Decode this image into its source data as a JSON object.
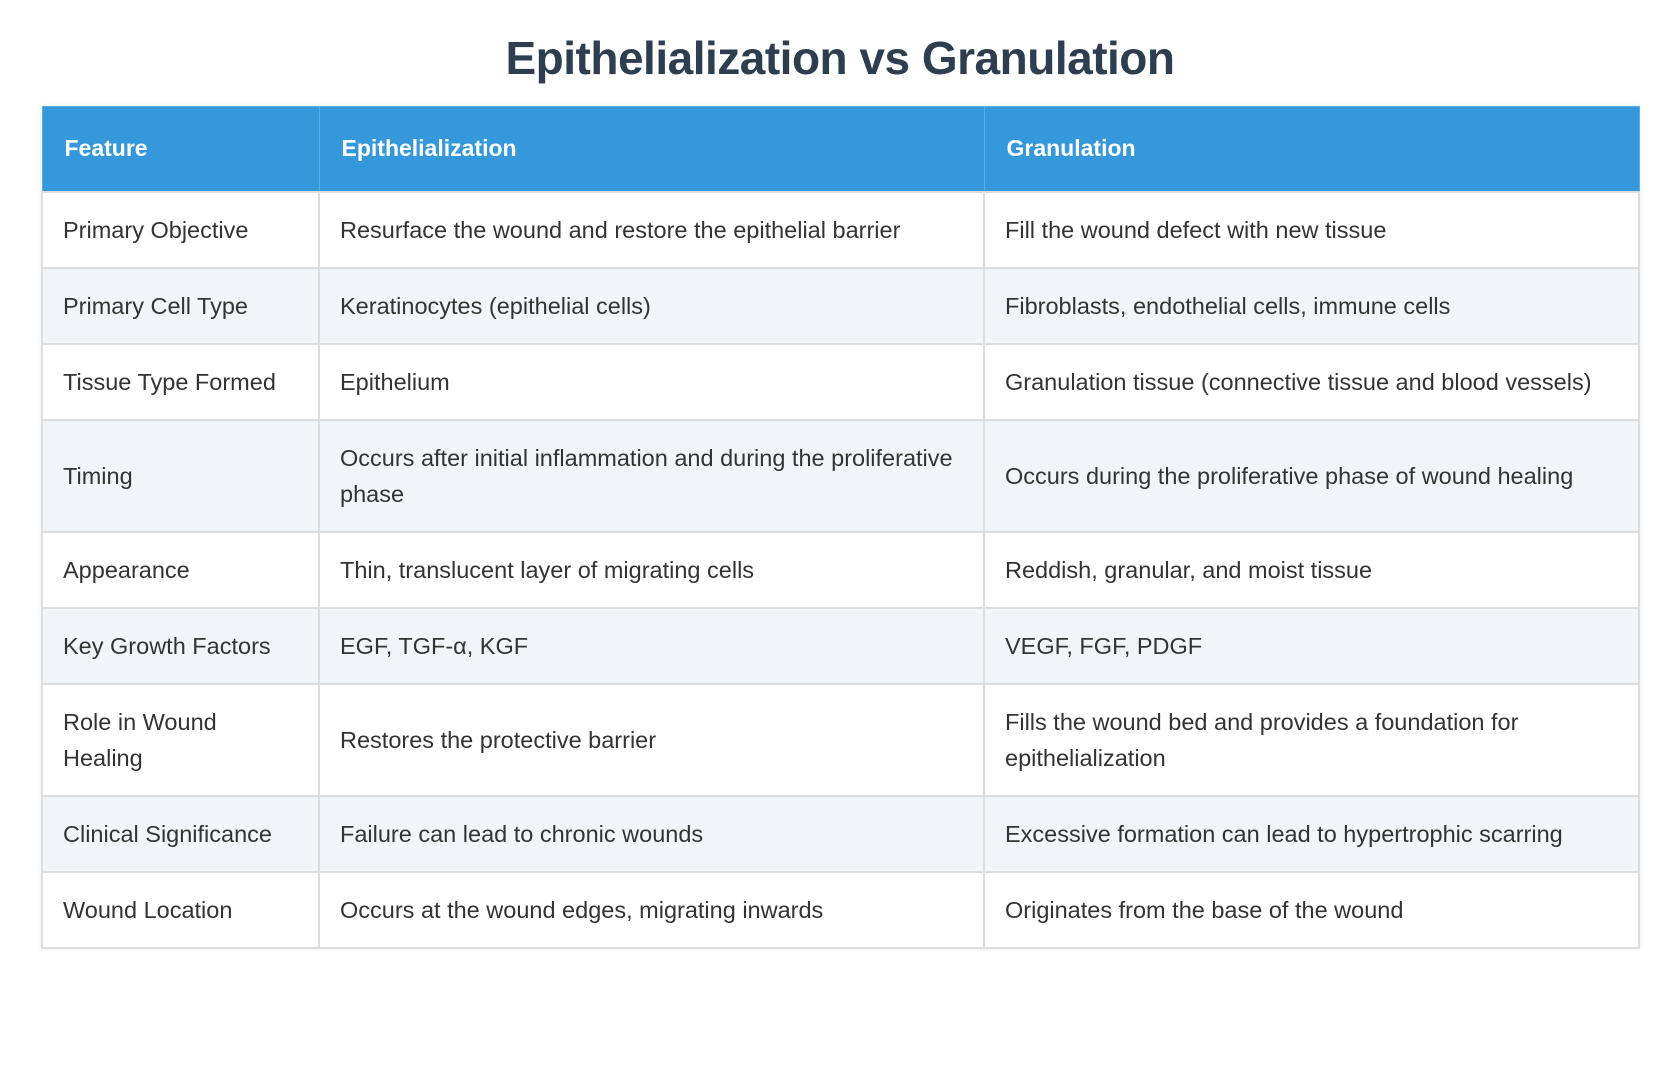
{
  "title": "Epithelialization vs Granulation",
  "colors": {
    "title": "#2c3e50",
    "header_bg": "#3498db",
    "header_text": "#ffffff",
    "row_alt_bg": "#f1f4f9",
    "border": "#dddddd",
    "body_text": "#333333"
  },
  "table": {
    "headers": [
      "Feature",
      "Epithelialization",
      "Granulation"
    ],
    "rows": [
      [
        "Primary Objective",
        "Resurface the wound and restore the epithelial barrier",
        "Fill the wound defect with new tissue"
      ],
      [
        "Primary Cell Type",
        "Keratinocytes (epithelial cells)",
        "Fibroblasts, endothelial cells, immune cells"
      ],
      [
        "Tissue Type Formed",
        "Epithelium",
        "Granulation tissue (connective tissue and blood vessels)"
      ],
      [
        "Timing",
        "Occurs after initial inflammation and during the proliferative phase",
        "Occurs during the proliferative phase of wound healing"
      ],
      [
        "Appearance",
        "Thin, translucent layer of migrating cells",
        "Reddish, granular, and moist tissue"
      ],
      [
        "Key Growth Factors",
        "EGF, TGF-α, KGF",
        "VEGF, FGF, PDGF"
      ],
      [
        "Role in Wound Healing",
        "Restores the protective barrier",
        "Fills the wound bed and provides a foundation for epithelialization"
      ],
      [
        "Clinical Significance",
        "Failure can lead to chronic wounds",
        "Excessive formation can lead to hypertrophic scarring"
      ],
      [
        "Wound Location",
        "Occurs at the wound edges, migrating inwards",
        "Originates from the base of the wound"
      ]
    ]
  }
}
